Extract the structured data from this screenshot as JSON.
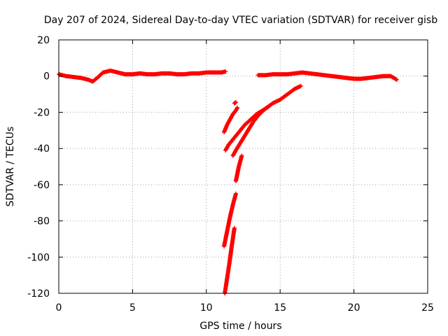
{
  "chart_data": {
    "type": "scatter",
    "title": "Day 207 of 2024, Sidereal Day-to-day VTEC variation (SDTVAR) for receiver gisb",
    "xlabel": "GPS time / hours",
    "ylabel": "SDTVAR / TECUs",
    "xlim": [
      0,
      25
    ],
    "ylim": [
      -120,
      20
    ],
    "xticks": [
      "0",
      "5",
      "10",
      "15",
      "20",
      "25"
    ],
    "yticks": [
      "20",
      "0",
      "-20",
      "-40",
      "-60",
      "-80",
      "-100",
      "-120"
    ],
    "grid": true,
    "marker": "plus",
    "color": "#ff0000",
    "series": [
      {
        "segments": [
          {
            "x": [
              0.0,
              0.5,
              1.0,
              1.5,
              2.0,
              2.3,
              2.6,
              3.0,
              3.5,
              4.0,
              4.5,
              5.0,
              5.5,
              6.0,
              6.5,
              7.0,
              7.5,
              8.0,
              8.5,
              9.0,
              9.5,
              10.0,
              10.5,
              11.0,
              11.3
            ],
            "y": [
              1.0,
              0.0,
              -0.5,
              -1.0,
              -2.0,
              -3.0,
              -1.0,
              2.0,
              3.0,
              2.0,
              1.0,
              1.0,
              1.5,
              1.0,
              1.0,
              1.5,
              1.5,
              1.0,
              1.0,
              1.5,
              1.5,
              2.0,
              2.0,
              2.0,
              2.5
            ]
          },
          {
            "x": [
              13.5,
              14.0,
              14.5,
              15.0,
              15.5,
              16.0,
              16.5,
              17.0,
              17.5,
              18.0,
              18.5,
              19.0,
              19.5,
              20.0,
              20.5,
              21.0,
              21.5,
              22.0,
              22.5,
              22.9
            ],
            "y": [
              0.5,
              0.5,
              1.0,
              1.0,
              1.0,
              1.5,
              2.0,
              1.5,
              1.0,
              0.5,
              0.0,
              -0.5,
              -1.0,
              -1.5,
              -1.5,
              -1.0,
              -0.5,
              0.0,
              0.0,
              -2.0
            ]
          },
          {
            "x": [
              11.2,
              11.4,
              11.6,
              11.8,
              12.0,
              12.1
            ],
            "y": [
              -31.0,
              -27.0,
              -24.0,
              -21.0,
              -19.0,
              -17.5
            ]
          },
          {
            "x": [
              11.9,
              12.0
            ],
            "y": [
              -15.0,
              -14.5
            ]
          },
          {
            "x": [
              11.3,
              11.5,
              11.7,
              12.0,
              12.3,
              12.6,
              13.0,
              13.4,
              13.8,
              14.2
            ],
            "y": [
              -41.0,
              -38.0,
              -36.0,
              -33.0,
              -30.0,
              -27.0,
              -24.0,
              -21.0,
              -19.0,
              -17.0
            ]
          },
          {
            "x": [
              11.8,
              12.0,
              12.3,
              12.6,
              12.9,
              13.2,
              13.6,
              14.0,
              14.5,
              15.0,
              15.5,
              16.0,
              16.4
            ],
            "y": [
              -44.0,
              -41.0,
              -37.0,
              -33.0,
              -29.0,
              -25.0,
              -21.0,
              -18.0,
              -15.0,
              -13.0,
              -10.0,
              -7.0,
              -5.5
            ]
          },
          {
            "x": [
              12.0,
              12.1,
              12.2,
              12.3,
              12.4
            ],
            "y": [
              -58.0,
              -54.0,
              -50.0,
              -47.0,
              -44.0
            ]
          },
          {
            "x": [
              11.2,
              11.4,
              11.6,
              11.8,
              12.0
            ],
            "y": [
              -94.0,
              -86.0,
              -78.0,
              -71.0,
              -65.0
            ]
          },
          {
            "x": [
              11.25,
              11.4,
              11.55,
              11.7,
              11.9
            ],
            "y": [
              -120.0,
              -112.0,
              -104.0,
              -95.0,
              -84.0
            ]
          }
        ]
      }
    ]
  }
}
